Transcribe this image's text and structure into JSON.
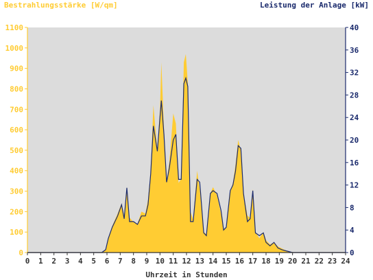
{
  "chart_data": {
    "type": "area",
    "left_axis_label": "Bestrahlungsstärke [W/qm]",
    "right_axis_label": "Leistung der Anlage [kW]",
    "xlabel": "Uhrzeit in Stunden",
    "x_range": [
      0,
      24
    ],
    "x_ticks": [
      "0",
      "1",
      "2",
      "3",
      "4",
      "5",
      "6",
      "7",
      "8",
      "9",
      "10",
      "11",
      "12",
      "13",
      "14",
      "15",
      "16",
      "17",
      "18",
      "19",
      "20",
      "21",
      "22",
      "23",
      "24"
    ],
    "left_range": [
      0,
      1100
    ],
    "left_ticks": [
      "0",
      "100",
      "200",
      "300",
      "400",
      "500",
      "600",
      "700",
      "800",
      "900",
      "1000",
      "1100"
    ],
    "right_range": [
      0,
      40
    ],
    "right_ticks": [
      "0",
      "4",
      "8",
      "12",
      "16",
      "20",
      "24",
      "28",
      "32",
      "36",
      "40"
    ],
    "grid": false,
    "colors": {
      "irradiance_fill": "#ffcc33",
      "power_line": "#1a2a6c",
      "plot_bg": "#dcdcdc",
      "left_axis": "#ffcc33",
      "right_axis": "#1a2a6c",
      "x_axis": "#333333"
    },
    "series": [
      {
        "name": "Bestrahlungsstärke [W/qm]",
        "axis": "left",
        "points": [
          [
            0,
            0
          ],
          [
            5.6,
            0
          ],
          [
            5.9,
            15
          ],
          [
            6.1,
            70
          ],
          [
            6.4,
            130
          ],
          [
            6.8,
            190
          ],
          [
            7.1,
            240
          ],
          [
            7.3,
            180
          ],
          [
            7.5,
            320
          ],
          [
            7.7,
            170
          ],
          [
            8,
            150
          ],
          [
            8.3,
            140
          ],
          [
            8.6,
            200
          ],
          [
            8.9,
            190
          ],
          [
            9.1,
            260
          ],
          [
            9.3,
            400
          ],
          [
            9.5,
            720
          ],
          [
            9.8,
            500
          ],
          [
            10,
            700
          ],
          [
            10.1,
            930
          ],
          [
            10.3,
            610
          ],
          [
            10.5,
            350
          ],
          [
            10.7,
            440
          ],
          [
            11,
            680
          ],
          [
            11.2,
            630
          ],
          [
            11.4,
            340
          ],
          [
            11.6,
            360
          ],
          [
            11.8,
            930
          ],
          [
            11.95,
            970
          ],
          [
            12.1,
            830
          ],
          [
            12.3,
            200
          ],
          [
            12.5,
            160
          ],
          [
            12.8,
            400
          ],
          [
            13,
            310
          ],
          [
            13.3,
            100
          ],
          [
            13.5,
            90
          ],
          [
            13.8,
            290
          ],
          [
            14,
            320
          ],
          [
            14.3,
            280
          ],
          [
            14.6,
            190
          ],
          [
            14.8,
            110
          ],
          [
            15,
            120
          ],
          [
            15.3,
            300
          ],
          [
            15.5,
            340
          ],
          [
            15.7,
            430
          ],
          [
            15.9,
            550
          ],
          [
            16.1,
            500
          ],
          [
            16.3,
            290
          ],
          [
            16.6,
            180
          ],
          [
            16.8,
            170
          ],
          [
            17,
            310
          ],
          [
            17.2,
            100
          ],
          [
            17.5,
            70
          ],
          [
            17.8,
            100
          ],
          [
            18,
            60
          ],
          [
            18.3,
            40
          ],
          [
            18.6,
            50
          ],
          [
            18.9,
            30
          ],
          [
            19.2,
            20
          ],
          [
            19.5,
            10
          ],
          [
            20,
            0
          ],
          [
            24,
            0
          ]
        ]
      },
      {
        "name": "Leistung der Anlage [kW]",
        "axis": "right",
        "points": [
          [
            0,
            0
          ],
          [
            5.6,
            0
          ],
          [
            5.9,
            0.5
          ],
          [
            6.1,
            2.5
          ],
          [
            6.4,
            4.5
          ],
          [
            6.8,
            6.5
          ],
          [
            7.1,
            8.5
          ],
          [
            7.3,
            6
          ],
          [
            7.5,
            11.5
          ],
          [
            7.7,
            5.5
          ],
          [
            8,
            5.5
          ],
          [
            8.3,
            5
          ],
          [
            8.6,
            6.5
          ],
          [
            8.9,
            6.5
          ],
          [
            9.1,
            8.5
          ],
          [
            9.3,
            14
          ],
          [
            9.5,
            22.5
          ],
          [
            9.8,
            18
          ],
          [
            10,
            24
          ],
          [
            10.1,
            27
          ],
          [
            10.3,
            21
          ],
          [
            10.5,
            12.5
          ],
          [
            10.7,
            15
          ],
          [
            11,
            20
          ],
          [
            11.2,
            21
          ],
          [
            11.4,
            13
          ],
          [
            11.6,
            13
          ],
          [
            11.8,
            30
          ],
          [
            11.95,
            31
          ],
          [
            12.1,
            29.5
          ],
          [
            12.3,
            5.5
          ],
          [
            12.5,
            5.5
          ],
          [
            12.8,
            13
          ],
          [
            13,
            12.5
          ],
          [
            13.3,
            3.5
          ],
          [
            13.5,
            3
          ],
          [
            13.8,
            10.5
          ],
          [
            14,
            11
          ],
          [
            14.3,
            10.5
          ],
          [
            14.6,
            7.5
          ],
          [
            14.8,
            4
          ],
          [
            15,
            4.5
          ],
          [
            15.3,
            11
          ],
          [
            15.5,
            12
          ],
          [
            15.7,
            14.5
          ],
          [
            15.9,
            19
          ],
          [
            16.1,
            18.5
          ],
          [
            16.3,
            10.5
          ],
          [
            16.6,
            5.5
          ],
          [
            16.8,
            6
          ],
          [
            17,
            11
          ],
          [
            17.2,
            3.5
          ],
          [
            17.5,
            3
          ],
          [
            17.8,
            3.5
          ],
          [
            18,
            1.8
          ],
          [
            18.3,
            1.2
          ],
          [
            18.6,
            1.8
          ],
          [
            18.9,
            0.8
          ],
          [
            19.2,
            0.5
          ],
          [
            19.5,
            0.3
          ],
          [
            20,
            0
          ],
          [
            24,
            0
          ]
        ]
      }
    ]
  }
}
